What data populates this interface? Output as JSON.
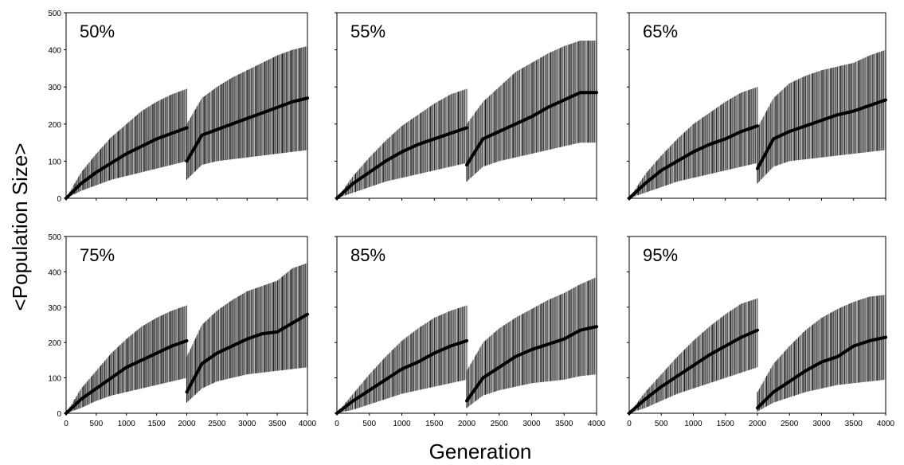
{
  "figure": {
    "ylabel": "<Population Size>",
    "xlabel": "Generation"
  },
  "chart_data": [
    {
      "type": "line",
      "panel_label": "50%",
      "xlim": [
        0,
        4000
      ],
      "ylim": [
        0,
        500
      ],
      "x_ticks": [
        0,
        500,
        1000,
        1500,
        2000,
        2500,
        3000,
        3500,
        4000
      ],
      "y_ticks": [
        0,
        100,
        200,
        300,
        400,
        500
      ],
      "show_x_ticks": false,
      "show_y_ticks": true,
      "segments": [
        {
          "x": [
            0,
            250,
            500,
            750,
            1000,
            1250,
            1500,
            1750,
            2000
          ],
          "y": [
            0,
            40,
            70,
            95,
            120,
            140,
            160,
            175,
            190
          ],
          "upper": [
            0,
            70,
            120,
            165,
            200,
            235,
            260,
            280,
            295
          ],
          "lower": [
            0,
            20,
            35,
            50,
            60,
            70,
            80,
            90,
            100
          ]
        },
        {
          "x": [
            2000,
            2250,
            2500,
            2750,
            3000,
            3250,
            3500,
            3750,
            4000
          ],
          "y": [
            100,
            170,
            185,
            200,
            215,
            230,
            245,
            260,
            270
          ],
          "upper": [
            200,
            270,
            300,
            325,
            345,
            365,
            385,
            400,
            410
          ],
          "lower": [
            50,
            90,
            100,
            105,
            110,
            115,
            120,
            125,
            130
          ]
        }
      ]
    },
    {
      "type": "line",
      "panel_label": "55%",
      "xlim": [
        0,
        4000
      ],
      "ylim": [
        0,
        500
      ],
      "x_ticks": [
        0,
        500,
        1000,
        1500,
        2000,
        2500,
        3000,
        3500,
        4000
      ],
      "y_ticks": [
        0,
        100,
        200,
        300,
        400,
        500
      ],
      "show_x_ticks": false,
      "show_y_ticks": false,
      "segments": [
        {
          "x": [
            0,
            250,
            500,
            750,
            1000,
            1250,
            1500,
            1750,
            2000
          ],
          "y": [
            0,
            40,
            70,
            100,
            125,
            145,
            160,
            175,
            190
          ],
          "upper": [
            0,
            60,
            110,
            155,
            195,
            225,
            255,
            280,
            295
          ],
          "lower": [
            0,
            15,
            30,
            45,
            55,
            65,
            75,
            85,
            95
          ]
        },
        {
          "x": [
            2000,
            2250,
            2500,
            2750,
            3000,
            3250,
            3500,
            3750,
            4000
          ],
          "y": [
            90,
            160,
            180,
            200,
            220,
            245,
            265,
            285,
            285
          ],
          "upper": [
            200,
            260,
            300,
            340,
            365,
            390,
            410,
            425,
            425
          ],
          "lower": [
            45,
            85,
            100,
            110,
            120,
            130,
            140,
            150,
            150
          ]
        }
      ]
    },
    {
      "type": "line",
      "panel_label": "65%",
      "xlim": [
        0,
        4000
      ],
      "ylim": [
        0,
        500
      ],
      "x_ticks": [
        0,
        500,
        1000,
        1500,
        2000,
        2500,
        3000,
        3500,
        4000
      ],
      "y_ticks": [
        0,
        100,
        200,
        300,
        400,
        500
      ],
      "show_x_ticks": false,
      "show_y_ticks": false,
      "segments": [
        {
          "x": [
            0,
            250,
            500,
            750,
            1000,
            1250,
            1500,
            1750,
            2000
          ],
          "y": [
            0,
            40,
            75,
            100,
            125,
            145,
            160,
            180,
            195
          ],
          "upper": [
            0,
            65,
            115,
            160,
            200,
            230,
            260,
            285,
            300
          ],
          "lower": [
            0,
            15,
            30,
            45,
            55,
            65,
            75,
            85,
            95
          ]
        },
        {
          "x": [
            2000,
            2250,
            2500,
            2750,
            3000,
            3250,
            3500,
            3750,
            4000
          ],
          "y": [
            80,
            160,
            180,
            195,
            210,
            225,
            235,
            250,
            265
          ],
          "upper": [
            190,
            270,
            310,
            330,
            345,
            355,
            365,
            385,
            400
          ],
          "lower": [
            40,
            85,
            100,
            105,
            110,
            115,
            120,
            125,
            130
          ]
        }
      ]
    },
    {
      "type": "line",
      "panel_label": "75%",
      "xlim": [
        0,
        4000
      ],
      "ylim": [
        0,
        500
      ],
      "x_ticks": [
        0,
        500,
        1000,
        1500,
        2000,
        2500,
        3000,
        3500,
        4000
      ],
      "y_ticks": [
        0,
        100,
        200,
        300,
        400,
        500
      ],
      "show_x_ticks": true,
      "show_y_ticks": true,
      "segments": [
        {
          "x": [
            0,
            250,
            500,
            750,
            1000,
            1250,
            1500,
            1750,
            2000
          ],
          "y": [
            0,
            40,
            70,
            100,
            130,
            150,
            170,
            190,
            205
          ],
          "upper": [
            0,
            70,
            120,
            170,
            210,
            245,
            270,
            290,
            305
          ],
          "lower": [
            0,
            15,
            35,
            50,
            60,
            70,
            80,
            90,
            100
          ]
        },
        {
          "x": [
            2000,
            2250,
            2500,
            2750,
            3000,
            3250,
            3500,
            3750,
            4000
          ],
          "y": [
            60,
            140,
            170,
            190,
            210,
            225,
            230,
            255,
            280
          ],
          "upper": [
            160,
            250,
            290,
            320,
            345,
            360,
            375,
            410,
            425
          ],
          "lower": [
            30,
            70,
            90,
            100,
            110,
            115,
            120,
            125,
            130
          ]
        }
      ]
    },
    {
      "type": "line",
      "panel_label": "85%",
      "xlim": [
        0,
        4000
      ],
      "ylim": [
        0,
        500
      ],
      "x_ticks": [
        0,
        500,
        1000,
        1500,
        2000,
        2500,
        3000,
        3500,
        4000
      ],
      "y_ticks": [
        0,
        100,
        200,
        300,
        400,
        500
      ],
      "show_x_ticks": true,
      "show_y_ticks": false,
      "segments": [
        {
          "x": [
            0,
            250,
            500,
            750,
            1000,
            1250,
            1500,
            1750,
            2000
          ],
          "y": [
            0,
            35,
            65,
            95,
            125,
            145,
            170,
            190,
            205
          ],
          "upper": [
            0,
            55,
            110,
            160,
            205,
            240,
            270,
            290,
            305
          ],
          "lower": [
            0,
            10,
            25,
            40,
            55,
            65,
            75,
            85,
            95
          ]
        },
        {
          "x": [
            2000,
            2250,
            2500,
            2750,
            3000,
            3250,
            3500,
            3750,
            4000
          ],
          "y": [
            35,
            100,
            130,
            160,
            180,
            195,
            210,
            235,
            245
          ],
          "upper": [
            120,
            200,
            240,
            270,
            295,
            320,
            340,
            365,
            385
          ],
          "lower": [
            15,
            50,
            65,
            75,
            85,
            90,
            95,
            105,
            110
          ]
        }
      ]
    },
    {
      "type": "line",
      "panel_label": "95%",
      "xlim": [
        0,
        4000
      ],
      "ylim": [
        0,
        500
      ],
      "x_ticks": [
        0,
        500,
        1000,
        1500,
        2000,
        2500,
        3000,
        3500,
        4000
      ],
      "y_ticks": [
        0,
        100,
        200,
        300,
        400,
        500
      ],
      "show_x_ticks": true,
      "show_y_ticks": false,
      "segments": [
        {
          "x": [
            0,
            250,
            500,
            750,
            1000,
            1250,
            1500,
            1750,
            2000
          ],
          "y": [
            0,
            40,
            75,
            105,
            135,
            165,
            190,
            215,
            235
          ],
          "upper": [
            0,
            60,
            110,
            160,
            205,
            245,
            280,
            310,
            325
          ],
          "lower": [
            0,
            15,
            35,
            55,
            70,
            85,
            100,
            115,
            130
          ]
        },
        {
          "x": [
            2000,
            2250,
            2500,
            2750,
            3000,
            3250,
            3500,
            3750,
            4000
          ],
          "y": [
            15,
            60,
            90,
            120,
            145,
            160,
            190,
            205,
            215
          ],
          "upper": [
            60,
            140,
            190,
            235,
            270,
            295,
            315,
            330,
            335
          ],
          "lower": [
            5,
            30,
            45,
            60,
            70,
            80,
            85,
            90,
            95
          ]
        }
      ]
    }
  ]
}
